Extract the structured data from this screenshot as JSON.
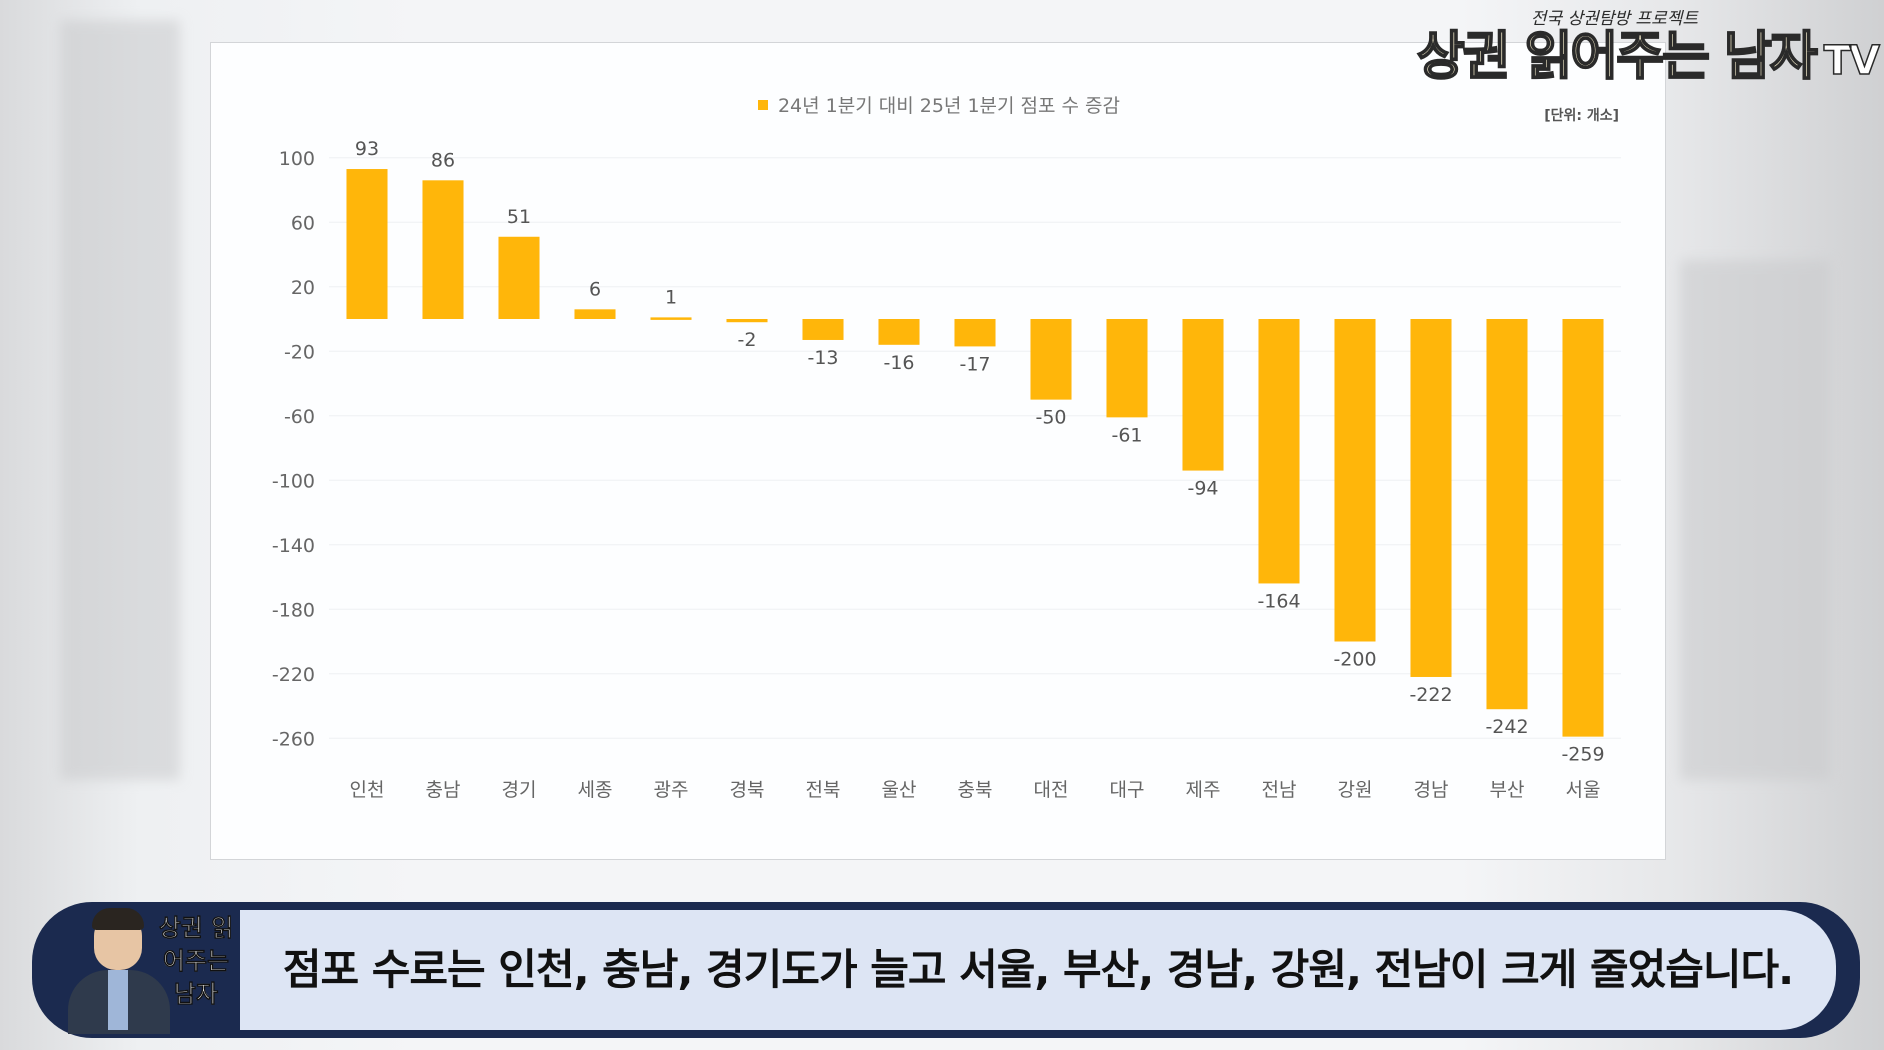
{
  "brand": {
    "main": "상권 읽어주는 남자",
    "tv": "TV",
    "tagline": "전국 상권탐방 프로젝트"
  },
  "chart_data": {
    "type": "bar",
    "legend": "24년 1분기 대비 25년 1분기 점포 수 증감",
    "unit": "[단위: 개소]",
    "categories": [
      "인천",
      "충남",
      "경기",
      "세종",
      "광주",
      "경북",
      "전북",
      "울산",
      "충북",
      "대전",
      "대구",
      "제주",
      "전남",
      "강원",
      "경남",
      "부산",
      "서울"
    ],
    "values": [
      93,
      86,
      51,
      6,
      1,
      -2,
      -13,
      -16,
      -17,
      -50,
      -61,
      -94,
      -164,
      -200,
      -222,
      -242,
      -259
    ],
    "yticks": [
      100,
      60,
      20,
      -20,
      -60,
      -100,
      -140,
      -180,
      -220,
      -260
    ],
    "ylim": [
      -260,
      100
    ],
    "color": "#ffb60a",
    "grid": true
  },
  "subtitle": {
    "avatar_name": "상권 읽어주는 남자",
    "text": "점포 수로는 인천, 충남, 경기도가 늘고 서울, 부산, 경남, 강원, 전남이 크게 줄었습니다."
  }
}
